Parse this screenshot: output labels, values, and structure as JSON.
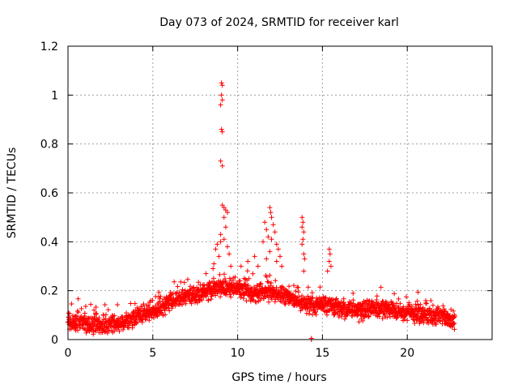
{
  "chart_data": {
    "type": "scatter",
    "title": "Day 073 of 2024, SRMTID for receiver karl",
    "xlabel": "GPS time / hours",
    "ylabel": "SRMTID / TECUs",
    "xlim": [
      0,
      25
    ],
    "ylim": [
      0,
      1.2
    ],
    "xticks": [
      0,
      5,
      10,
      15,
      20
    ],
    "xtick_labels": [
      "0",
      "5",
      "10",
      "15",
      "20"
    ],
    "yticks": [
      0,
      0.2,
      0.4,
      0.6,
      0.8,
      1.0,
      1.2
    ],
    "ytick_labels": [
      "0",
      "0.2",
      "0.4",
      "0.6",
      "0.8",
      "1",
      "1.2"
    ],
    "grid": true,
    "marker": "+",
    "color": "#ff0000",
    "series": [
      {
        "name": "SRMTID",
        "baseline": [
          [
            0.0,
            0.07
          ],
          [
            1.0,
            0.07
          ],
          [
            2.0,
            0.06
          ],
          [
            3.0,
            0.07
          ],
          [
            4.0,
            0.09
          ],
          [
            5.0,
            0.12
          ],
          [
            6.0,
            0.15
          ],
          [
            7.0,
            0.18
          ],
          [
            8.0,
            0.19
          ],
          [
            9.0,
            0.22
          ],
          [
            10.0,
            0.21
          ],
          [
            11.0,
            0.19
          ],
          [
            12.0,
            0.2
          ],
          [
            13.0,
            0.17
          ],
          [
            14.0,
            0.14
          ],
          [
            15.0,
            0.14
          ],
          [
            16.0,
            0.13
          ],
          [
            17.0,
            0.12
          ],
          [
            18.0,
            0.13
          ],
          [
            19.0,
            0.12
          ],
          [
            20.0,
            0.11
          ],
          [
            21.0,
            0.1
          ],
          [
            22.0,
            0.1
          ],
          [
            22.8,
            0.08
          ]
        ],
        "spread": 0.05,
        "time_range": [
          0.0,
          22.8
        ],
        "sample_count": 1900,
        "peaks": [
          {
            "x": 9.05,
            "y": 1.05
          },
          {
            "x": 9.1,
            "y": 1.04
          },
          {
            "x": 9.05,
            "y": 1.0
          },
          {
            "x": 9.1,
            "y": 0.98
          },
          {
            "x": 9.0,
            "y": 0.96
          },
          {
            "x": 9.05,
            "y": 0.86
          },
          {
            "x": 9.1,
            "y": 0.85
          },
          {
            "x": 9.0,
            "y": 0.73
          },
          {
            "x": 9.1,
            "y": 0.71
          },
          {
            "x": 9.1,
            "y": 0.55
          },
          {
            "x": 9.2,
            "y": 0.54
          },
          {
            "x": 9.3,
            "y": 0.53
          },
          {
            "x": 9.4,
            "y": 0.52
          },
          {
            "x": 9.2,
            "y": 0.5
          },
          {
            "x": 9.3,
            "y": 0.46
          },
          {
            "x": 9.0,
            "y": 0.43
          },
          {
            "x": 9.2,
            "y": 0.41
          },
          {
            "x": 9.0,
            "y": 0.4
          },
          {
            "x": 9.4,
            "y": 0.38
          },
          {
            "x": 8.8,
            "y": 0.39
          },
          {
            "x": 8.7,
            "y": 0.37
          },
          {
            "x": 9.5,
            "y": 0.35
          },
          {
            "x": 8.9,
            "y": 0.34
          },
          {
            "x": 9.6,
            "y": 0.3
          },
          {
            "x": 8.6,
            "y": 0.31
          },
          {
            "x": 8.55,
            "y": 0.29
          },
          {
            "x": 11.9,
            "y": 0.54
          },
          {
            "x": 11.95,
            "y": 0.52
          },
          {
            "x": 12.0,
            "y": 0.5
          },
          {
            "x": 11.6,
            "y": 0.48
          },
          {
            "x": 12.1,
            "y": 0.47
          },
          {
            "x": 11.7,
            "y": 0.45
          },
          {
            "x": 12.2,
            "y": 0.44
          },
          {
            "x": 11.8,
            "y": 0.42
          },
          {
            "x": 12.0,
            "y": 0.41
          },
          {
            "x": 11.5,
            "y": 0.4
          },
          {
            "x": 12.3,
            "y": 0.39
          },
          {
            "x": 12.4,
            "y": 0.37
          },
          {
            "x": 11.9,
            "y": 0.36
          },
          {
            "x": 12.5,
            "y": 0.34
          },
          {
            "x": 11.7,
            "y": 0.33
          },
          {
            "x": 12.3,
            "y": 0.32
          },
          {
            "x": 11.0,
            "y": 0.34
          },
          {
            "x": 10.2,
            "y": 0.3
          },
          {
            "x": 10.6,
            "y": 0.32
          },
          {
            "x": 11.2,
            "y": 0.3
          },
          {
            "x": 12.6,
            "y": 0.3
          },
          {
            "x": 13.8,
            "y": 0.5
          },
          {
            "x": 13.85,
            "y": 0.48
          },
          {
            "x": 13.8,
            "y": 0.46
          },
          {
            "x": 13.9,
            "y": 0.44
          },
          {
            "x": 13.85,
            "y": 0.41
          },
          {
            "x": 13.8,
            "y": 0.39
          },
          {
            "x": 13.9,
            "y": 0.35
          },
          {
            "x": 13.95,
            "y": 0.33
          },
          {
            "x": 13.9,
            "y": 0.28
          },
          {
            "x": 15.4,
            "y": 0.37
          },
          {
            "x": 15.45,
            "y": 0.35
          },
          {
            "x": 15.4,
            "y": 0.32
          },
          {
            "x": 15.5,
            "y": 0.3
          },
          {
            "x": 15.3,
            "y": 0.28
          },
          {
            "x": 14.35,
            "y": 0.0
          },
          {
            "x": 14.35,
            "y": 0.005
          }
        ]
      }
    ]
  }
}
